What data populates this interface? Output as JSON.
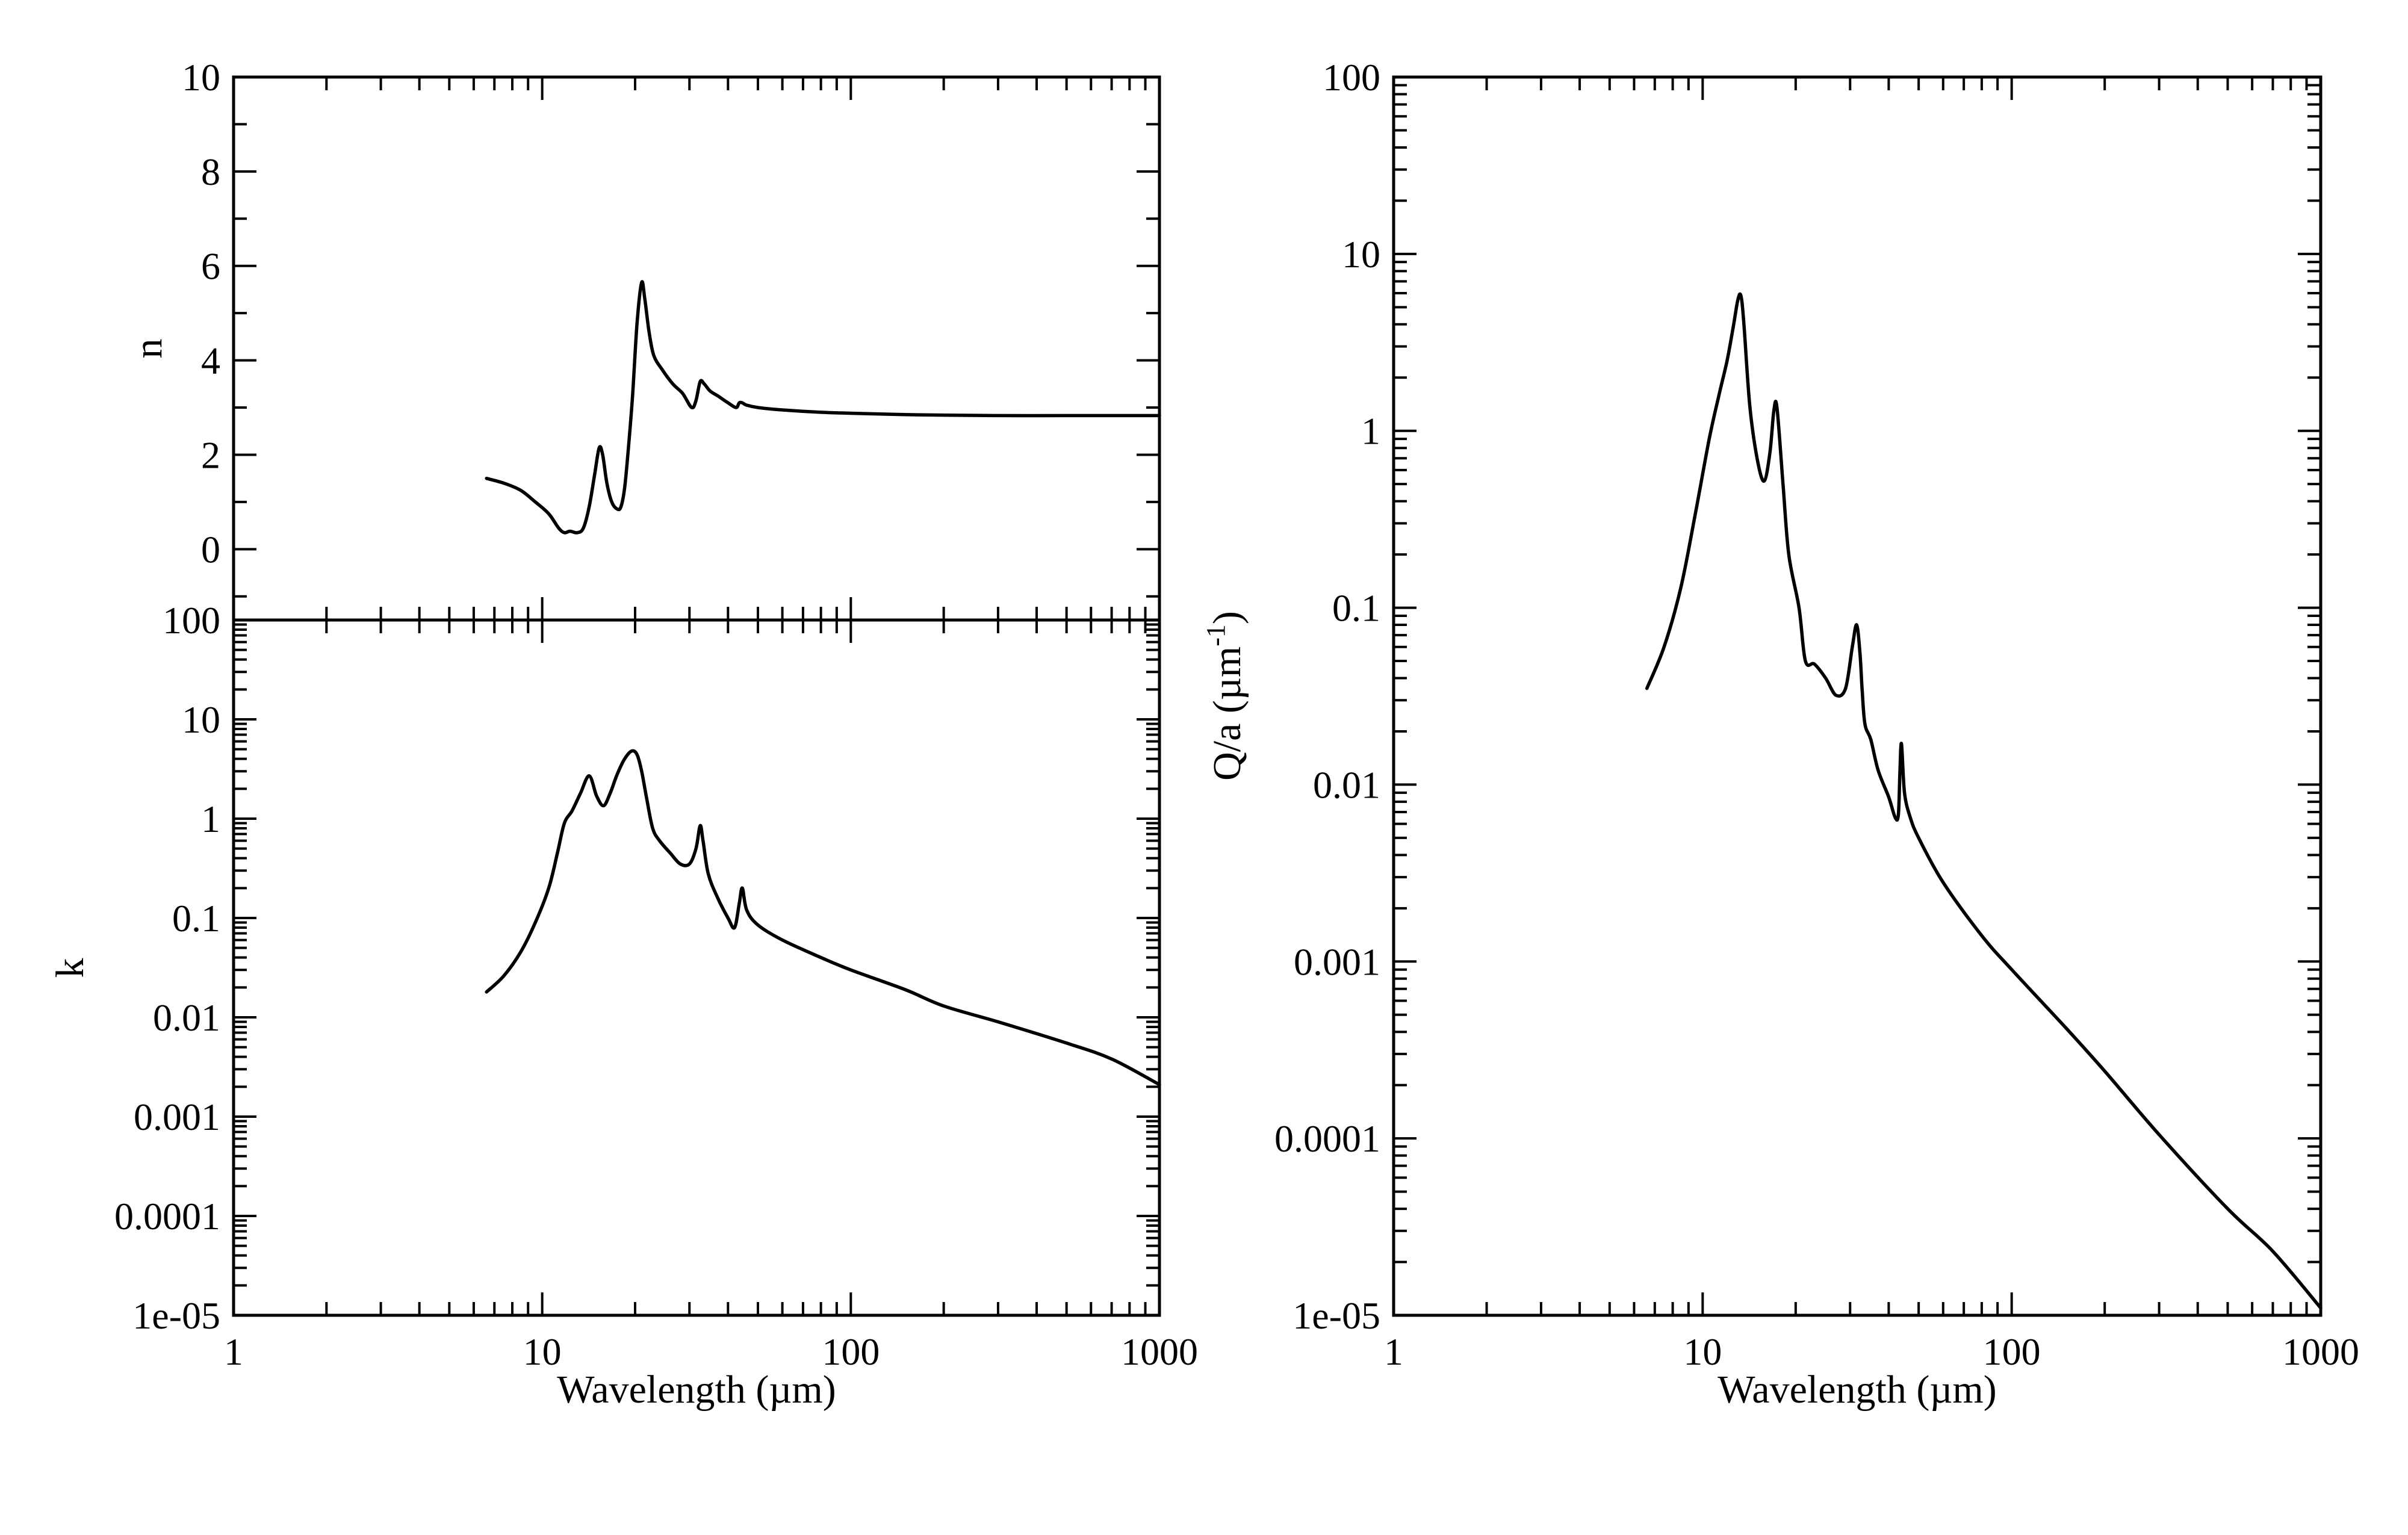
{
  "chart_data": [
    {
      "type": "line",
      "id": "n",
      "ylabel": "n",
      "xscale": "log",
      "xlim": [
        1,
        1000
      ],
      "ylim": [
        -1.5,
        10
      ],
      "yticks": [
        "0",
        "2",
        "4",
        "6",
        "8",
        "10"
      ],
      "ytick_values": [
        0,
        2,
        4,
        6,
        8,
        10
      ],
      "xtick_labels": [],
      "series": [
        {
          "x": [
            6.6,
            7.5,
            8.5,
            9.5,
            10.5,
            11.3,
            11.8,
            12.3,
            13.0,
            13.6,
            14.2,
            14.8,
            15.3,
            15.7,
            16.2,
            16.8,
            17.5,
            18.0,
            18.5,
            19.0,
            19.6,
            20.3,
            21.0,
            21.5,
            22.2,
            23.0,
            24.5,
            26.5,
            28.5,
            30.5,
            31.5,
            32.5,
            33.5,
            35.0,
            37.0,
            40.0,
            42.5,
            43.5,
            44.5,
            46.0,
            50,
            60,
            80,
            100,
            150,
            200,
            300,
            500,
            700,
            1000
          ],
          "y": [
            1.5,
            1.4,
            1.25,
            1.0,
            0.75,
            0.45,
            0.35,
            0.38,
            0.35,
            0.45,
            0.9,
            1.6,
            2.15,
            2.0,
            1.4,
            1.0,
            0.85,
            0.9,
            1.3,
            2.1,
            3.2,
            4.8,
            5.65,
            5.3,
            4.6,
            4.1,
            3.8,
            3.5,
            3.3,
            3.0,
            3.15,
            3.55,
            3.5,
            3.35,
            3.25,
            3.1,
            3.0,
            3.1,
            3.1,
            3.05,
            3.0,
            2.95,
            2.9,
            2.88,
            2.85,
            2.84,
            2.83,
            2.83,
            2.83,
            2.83
          ]
        }
      ]
    },
    {
      "type": "line",
      "id": "k",
      "ylabel": "k",
      "xlabel": "Wavelength (µm)",
      "xscale": "log",
      "yscale": "log",
      "xlim": [
        1,
        1000
      ],
      "ylim": [
        1e-05,
        100
      ],
      "xticks": [
        "1",
        "10",
        "100",
        "1000"
      ],
      "yticks": [
        "1e-05",
        "0.0001",
        "0.001",
        "0.01",
        "0.1",
        "1",
        "10",
        "100"
      ],
      "ytick_values": [
        1e-05,
        0.0001,
        0.001,
        0.01,
        0.1,
        1,
        10,
        100
      ],
      "series": [
        {
          "x": [
            6.6,
            7.5,
            8.5,
            9.5,
            10.5,
            11.2,
            11.8,
            12.5,
            13.3,
            14.2,
            15.0,
            15.8,
            16.6,
            17.5,
            18.5,
            19.5,
            20.3,
            21.0,
            21.8,
            22.8,
            24.0,
            26.0,
            28.0,
            30.0,
            31.5,
            32.5,
            33.2,
            34.5,
            37.0,
            40.0,
            42.0,
            43.5,
            44.5,
            46.0,
            50,
            60,
            80,
            100,
            150,
            200,
            300,
            500,
            700,
            1000
          ],
          "y": [
            0.018,
            0.026,
            0.045,
            0.09,
            0.2,
            0.45,
            0.9,
            1.2,
            1.8,
            2.7,
            1.7,
            1.35,
            1.8,
            2.8,
            4.0,
            4.8,
            4.4,
            3.0,
            1.6,
            0.8,
            0.6,
            0.45,
            0.35,
            0.35,
            0.5,
            0.85,
            0.6,
            0.28,
            0.16,
            0.1,
            0.08,
            0.14,
            0.2,
            0.12,
            0.085,
            0.06,
            0.04,
            0.03,
            0.019,
            0.013,
            0.009,
            0.0055,
            0.0038,
            0.0021
          ]
        }
      ]
    },
    {
      "type": "line",
      "id": "qa",
      "ylabel": "Q/a (µm⁻¹)",
      "ylabel_base": "Q/a (µm",
      "ylabel_sup": "-1",
      "ylabel_close": ")",
      "xlabel": "Wavelength (µm)",
      "xscale": "log",
      "yscale": "log",
      "xlim": [
        1,
        1000
      ],
      "ylim": [
        1e-05,
        100
      ],
      "xticks": [
        "1",
        "10",
        "100",
        "1000"
      ],
      "yticks": [
        "1e-05",
        "0.0001",
        "0.001",
        "0.01",
        "0.1",
        "1",
        "10",
        "100"
      ],
      "ytick_values": [
        1e-05,
        0.0001,
        0.001,
        0.01,
        0.1,
        1,
        10,
        100
      ],
      "series": [
        {
          "x": [
            6.6,
            7.5,
            8.5,
            9.5,
            10.5,
            11.3,
            12.0,
            12.6,
            13.0,
            13.3,
            13.6,
            14.2,
            15.0,
            15.8,
            16.5,
            17.0,
            17.4,
            18.2,
            19.0,
            20.5,
            21.5,
            23.0,
            25.0,
            27.0,
            29.0,
            30.5,
            31.5,
            32.3,
            32.8,
            33.5,
            35.0,
            37.0,
            40.0,
            42.0,
            43.0,
            43.5,
            44.0,
            45.0,
            47.0,
            50,
            60,
            80,
            100,
            150,
            200,
            300,
            500,
            700,
            1000
          ],
          "y": [
            0.035,
            0.06,
            0.13,
            0.35,
            0.9,
            1.6,
            2.5,
            4.0,
            5.5,
            5.8,
            4.0,
            1.4,
            0.7,
            0.52,
            0.75,
            1.3,
            1.35,
            0.5,
            0.2,
            0.1,
            0.05,
            0.048,
            0.04,
            0.032,
            0.035,
            0.06,
            0.08,
            0.055,
            0.035,
            0.022,
            0.018,
            0.012,
            0.0085,
            0.0065,
            0.0068,
            0.012,
            0.017,
            0.009,
            0.0065,
            0.005,
            0.0028,
            0.0014,
            0.0009,
            0.00042,
            0.00024,
            0.000105,
            4e-05,
            2.3e-05,
            1.1e-05
          ]
        }
      ]
    }
  ]
}
